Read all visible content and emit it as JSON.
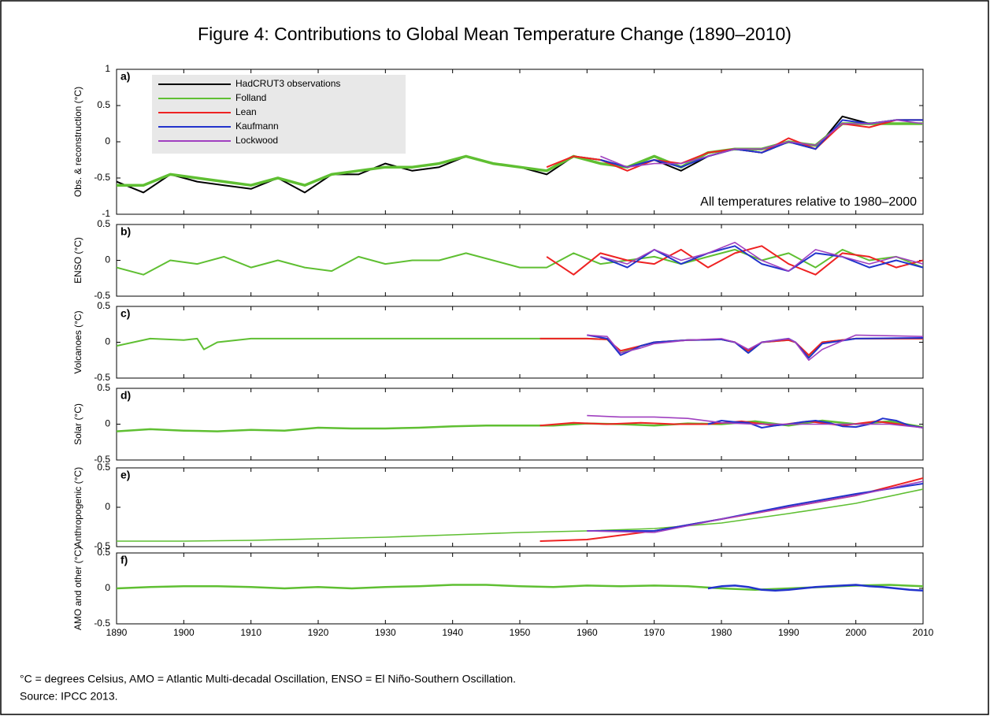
{
  "title": "Figure 4: Contributions to Global Mean Temperature Change (1890–2010)",
  "footnotes": [
    "°C = degrees Celsius, AMO = Atlantic Multi-decadal Oscillation, ENSO = El Niño-Southern Oscillation.",
    "Source: IPCC 2013."
  ],
  "chart_data": [
    {
      "type": "line",
      "label": "a)",
      "ylabel": "Obs. & reconstruction (°C)",
      "annotation": "All temperatures relative to 1980–2000",
      "legend": "upper left",
      "xlim": [
        1890,
        2010
      ],
      "ylim": [
        -1,
        1
      ],
      "yticks": [
        -1,
        -0.5,
        0,
        0.5,
        1
      ],
      "series": [
        {
          "name": "HadCRUT3 observations",
          "color": "#000000",
          "x": [
            1890,
            1894,
            1898,
            1902,
            1906,
            1910,
            1914,
            1918,
            1922,
            1926,
            1930,
            1934,
            1938,
            1942,
            1946,
            1950,
            1954,
            1958,
            1962,
            1966,
            1970,
            1974,
            1978,
            1982,
            1986,
            1990,
            1994,
            1998,
            2002,
            2006,
            2010
          ],
          "values": [
            -0.55,
            -0.7,
            -0.45,
            -0.55,
            -0.6,
            -0.65,
            -0.5,
            -0.7,
            -0.45,
            -0.45,
            -0.3,
            -0.4,
            -0.35,
            -0.2,
            -0.3,
            -0.35,
            -0.45,
            -0.2,
            -0.25,
            -0.35,
            -0.25,
            -0.4,
            -0.2,
            -0.1,
            -0.15,
            0.0,
            -0.1,
            0.35,
            0.25,
            0.3,
            0.3
          ]
        },
        {
          "name": "Folland",
          "color": "#5fbf32",
          "x": [
            1890,
            1894,
            1898,
            1902,
            1906,
            1910,
            1914,
            1918,
            1922,
            1926,
            1930,
            1934,
            1938,
            1942,
            1946,
            1950,
            1954,
            1958,
            1962,
            1966,
            1970,
            1974,
            1978,
            1982,
            1986,
            1990,
            1994,
            1998,
            2002,
            2006,
            2010
          ],
          "values": [
            -0.6,
            -0.6,
            -0.45,
            -0.5,
            -0.55,
            -0.6,
            -0.5,
            -0.6,
            -0.45,
            -0.4,
            -0.35,
            -0.35,
            -0.3,
            -0.2,
            -0.3,
            -0.35,
            -0.4,
            -0.2,
            -0.3,
            -0.35,
            -0.2,
            -0.35,
            -0.15,
            -0.1,
            -0.1,
            0.0,
            -0.05,
            0.25,
            0.25,
            0.25,
            0.25
          ]
        },
        {
          "name": "Lean",
          "color": "#ee2222",
          "x": [
            1954,
            1958,
            1962,
            1966,
            1970,
            1974,
            1978,
            1982,
            1986,
            1990,
            1994,
            1998,
            2002,
            2006,
            2010
          ],
          "values": [
            -0.35,
            -0.2,
            -0.25,
            -0.4,
            -0.25,
            -0.3,
            -0.15,
            -0.1,
            -0.15,
            0.05,
            -0.1,
            0.25,
            0.2,
            0.3,
            0.3
          ]
        },
        {
          "name": "Kaufmann",
          "color": "#2233cc",
          "x": [
            1962,
            1966,
            1970,
            1974,
            1978,
            1982,
            1986,
            1990,
            1994,
            1998,
            2002,
            2006,
            2010
          ],
          "values": [
            -0.25,
            -0.35,
            -0.25,
            -0.35,
            -0.2,
            -0.1,
            -0.15,
            0.0,
            -0.1,
            0.3,
            0.25,
            0.3,
            0.3
          ]
        },
        {
          "name": "Lockwood",
          "color": "#a040c0",
          "x": [
            1962,
            1966,
            1970,
            1974,
            1978,
            1982,
            1986,
            1990,
            1994,
            1998,
            2002,
            2006,
            2010
          ],
          "values": [
            -0.2,
            -0.35,
            -0.3,
            -0.3,
            -0.2,
            -0.1,
            -0.1,
            0.0,
            -0.05,
            0.25,
            0.25,
            0.3,
            0.25
          ]
        }
      ]
    },
    {
      "type": "line",
      "label": "b)",
      "ylabel": "ENSO (°C)",
      "xlim": [
        1890,
        2010
      ],
      "ylim": [
        -0.5,
        0.5
      ],
      "yticks": [
        -0.5,
        0,
        0.5
      ],
      "series": [
        {
          "color": "#5fbf32",
          "x": [
            1890,
            1894,
            1898,
            1902,
            1906,
            1910,
            1914,
            1918,
            1922,
            1926,
            1930,
            1934,
            1938,
            1942,
            1946,
            1950,
            1954,
            1958,
            1962,
            1966,
            1970,
            1974,
            1978,
            1982,
            1986,
            1990,
            1994,
            1998,
            2002,
            2006,
            2010
          ],
          "values": [
            -0.1,
            -0.2,
            0.0,
            -0.05,
            0.05,
            -0.1,
            0.0,
            -0.1,
            -0.15,
            0.05,
            -0.05,
            0.0,
            0.0,
            0.1,
            0.0,
            -0.1,
            -0.1,
            0.1,
            -0.05,
            0.0,
            0.05,
            -0.05,
            0.05,
            0.15,
            0.0,
            0.1,
            -0.1,
            0.15,
            0.0,
            0.05,
            -0.1
          ]
        },
        {
          "color": "#ee2222",
          "x": [
            1954,
            1958,
            1962,
            1966,
            1970,
            1974,
            1978,
            1982,
            1986,
            1990,
            1994,
            1998,
            2002,
            2006,
            2010
          ],
          "values": [
            0.05,
            -0.2,
            0.1,
            0.0,
            -0.05,
            0.15,
            -0.1,
            0.1,
            0.2,
            -0.05,
            -0.2,
            0.1,
            0.05,
            -0.1,
            0.0
          ]
        },
        {
          "color": "#2233cc",
          "x": [
            1962,
            1966,
            1970,
            1974,
            1978,
            1982,
            1986,
            1990,
            1994,
            1998,
            2002,
            2006,
            2010
          ],
          "values": [
            0.05,
            -0.1,
            0.15,
            -0.05,
            0.1,
            0.2,
            -0.05,
            -0.15,
            0.1,
            0.05,
            -0.1,
            0.0,
            -0.1
          ]
        },
        {
          "color": "#a040c0",
          "x": [
            1962,
            1966,
            1970,
            1974,
            1978,
            1982,
            1986,
            1990,
            1994,
            1998,
            2002,
            2006,
            2010
          ],
          "values": [
            0.05,
            -0.05,
            0.15,
            0.0,
            0.1,
            0.25,
            0.0,
            -0.15,
            0.15,
            0.05,
            -0.05,
            0.05,
            -0.05
          ]
        }
      ]
    },
    {
      "type": "line",
      "label": "c)",
      "ylabel": "Volcanoes (°C)",
      "xlim": [
        1890,
        2010
      ],
      "ylim": [
        -0.5,
        0.5
      ],
      "yticks": [
        -0.5,
        0,
        0.5
      ],
      "series": [
        {
          "color": "#5fbf32",
          "x": [
            1890,
            1895,
            1900,
            1902,
            1903,
            1905,
            1910,
            1920,
            1930,
            1940,
            1950,
            1960,
            1963,
            1965,
            1968,
            1970,
            1975,
            1980,
            1982,
            1984,
            1986,
            1990,
            1991,
            1993,
            1995,
            2000,
            2010
          ],
          "values": [
            -0.05,
            0.05,
            0.03,
            0.05,
            -0.1,
            0.0,
            0.05,
            0.05,
            0.05,
            0.05,
            0.05,
            0.05,
            0.04,
            -0.15,
            -0.05,
            0.0,
            0.03,
            0.04,
            0.0,
            -0.15,
            0.0,
            0.03,
            0.0,
            -0.2,
            0.0,
            0.05,
            0.05
          ]
        },
        {
          "color": "#ee2222",
          "x": [
            1953,
            1960,
            1963,
            1965,
            1968,
            1970,
            1975,
            1980,
            1982,
            1984,
            1986,
            1990,
            1991,
            1993,
            1995,
            2000,
            2010
          ],
          "values": [
            0.05,
            0.05,
            0.04,
            -0.12,
            -0.05,
            0.0,
            0.03,
            0.04,
            0.0,
            -0.12,
            0.0,
            0.03,
            0.0,
            -0.18,
            0.0,
            0.05,
            0.05
          ]
        },
        {
          "color": "#2233cc",
          "x": [
            1960,
            1963,
            1965,
            1968,
            1970,
            1975,
            1980,
            1982,
            1984,
            1986,
            1990,
            1991,
            1993,
            1995,
            2000,
            2010
          ],
          "values": [
            0.1,
            0.05,
            -0.18,
            -0.05,
            0.0,
            0.03,
            0.04,
            0.0,
            -0.15,
            0.0,
            0.05,
            0.0,
            -0.22,
            -0.02,
            0.05,
            0.06
          ]
        },
        {
          "color": "#a040c0",
          "x": [
            1960,
            1963,
            1965,
            1968,
            1970,
            1975,
            1980,
            1982,
            1984,
            1986,
            1990,
            1991,
            1993,
            1995,
            2000,
            2010
          ],
          "values": [
            0.1,
            0.08,
            -0.15,
            -0.08,
            -0.02,
            0.03,
            0.05,
            0.0,
            -0.1,
            0.0,
            0.05,
            0.0,
            -0.25,
            -0.1,
            0.1,
            0.08
          ]
        }
      ]
    },
    {
      "type": "line",
      "label": "d)",
      "ylabel": "Solar (°C)",
      "xlim": [
        1890,
        2010
      ],
      "ylim": [
        -0.5,
        0.5
      ],
      "yticks": [
        -0.5,
        0,
        0.5
      ],
      "series": [
        {
          "color": "#5fbf32",
          "x": [
            1890,
            1895,
            1900,
            1905,
            1910,
            1915,
            1920,
            1925,
            1930,
            1935,
            1940,
            1945,
            1950,
            1955,
            1960,
            1965,
            1970,
            1975,
            1980,
            1985,
            1990,
            1995,
            2000,
            2005,
            2010
          ],
          "values": [
            -0.1,
            -0.07,
            -0.09,
            -0.1,
            -0.08,
            -0.09,
            -0.05,
            -0.06,
            -0.06,
            -0.05,
            -0.03,
            -0.02,
            -0.02,
            -0.02,
            0.01,
            0.0,
            -0.02,
            0.01,
            0.0,
            0.04,
            -0.02,
            0.05,
            0.0,
            0.04,
            -0.04
          ]
        },
        {
          "color": "#ee2222",
          "x": [
            1953,
            1958,
            1963,
            1968,
            1973,
            1978,
            1983,
            1988,
            1993,
            1998,
            2003,
            2008,
            2010
          ],
          "values": [
            -0.02,
            0.02,
            0.0,
            0.02,
            0.0,
            0.0,
            0.04,
            -0.02,
            0.04,
            -0.02,
            0.04,
            -0.02,
            -0.05
          ]
        },
        {
          "color": "#2233cc",
          "x": [
            1978,
            1980,
            1982,
            1984,
            1986,
            1988,
            1990,
            1992,
            1994,
            1996,
            1998,
            2000,
            2002,
            2004,
            2006,
            2008,
            2010
          ],
          "values": [
            0.0,
            0.05,
            0.03,
            0.02,
            -0.05,
            -0.02,
            0.0,
            0.03,
            0.05,
            0.02,
            -0.03,
            -0.04,
            0.0,
            0.08,
            0.05,
            -0.02,
            -0.05
          ]
        },
        {
          "color": "#a040c0",
          "x": [
            1960,
            1965,
            1970,
            1975,
            1980,
            1985,
            1990,
            1995,
            2000,
            2005,
            2010
          ],
          "values": [
            0.12,
            0.1,
            0.1,
            0.08,
            0.02,
            0.0,
            0.0,
            0.0,
            0.0,
            0.0,
            -0.05
          ]
        }
      ]
    },
    {
      "type": "line",
      "label": "e)",
      "ylabel": "Anthropogenic (°C)",
      "xlim": [
        1890,
        2010
      ],
      "ylim": [
        -0.5,
        0.5
      ],
      "yticks": [
        -0.5,
        0,
        0.5
      ],
      "series": [
        {
          "color": "#5fbf32",
          "x": [
            1890,
            1900,
            1910,
            1920,
            1930,
            1940,
            1950,
            1960,
            1970,
            1980,
            1990,
            2000,
            2010
          ],
          "values": [
            -0.43,
            -0.43,
            -0.42,
            -0.4,
            -0.38,
            -0.35,
            -0.32,
            -0.3,
            -0.27,
            -0.2,
            -0.08,
            0.05,
            0.23
          ]
        },
        {
          "color": "#ee2222",
          "x": [
            1953,
            1960,
            1970,
            1980,
            1990,
            2000,
            2010
          ],
          "values": [
            -0.43,
            -0.41,
            -0.3,
            -0.15,
            0.0,
            0.15,
            0.37
          ]
        },
        {
          "color": "#2233cc",
          "x": [
            1960,
            1970,
            1980,
            1990,
            2000,
            2010
          ],
          "values": [
            -0.3,
            -0.3,
            -0.15,
            0.02,
            0.17,
            0.3
          ]
        },
        {
          "color": "#a040c0",
          "x": [
            1960,
            1970,
            1980,
            1990,
            2000,
            2010
          ],
          "values": [
            -0.3,
            -0.32,
            -0.15,
            0.0,
            0.15,
            0.33
          ]
        }
      ]
    },
    {
      "type": "line",
      "label": "f)",
      "ylabel": "AMO and other (°C)",
      "xlim": [
        1890,
        2010
      ],
      "ylim": [
        -0.5,
        0.5
      ],
      "yticks": [
        -0.5,
        0,
        0.5
      ],
      "xticks": [
        1890,
        1900,
        1910,
        1920,
        1930,
        1940,
        1950,
        1960,
        1970,
        1980,
        1990,
        2000,
        2010
      ],
      "series": [
        {
          "color": "#5fbf32",
          "x": [
            1890,
            1895,
            1900,
            1905,
            1910,
            1915,
            1920,
            1925,
            1930,
            1935,
            1940,
            1945,
            1950,
            1955,
            1960,
            1965,
            1970,
            1975,
            1980,
            1985,
            1990,
            1995,
            2000,
            2005,
            2010
          ],
          "values": [
            0.0,
            0.02,
            0.03,
            0.03,
            0.02,
            0.0,
            0.02,
            0.0,
            0.02,
            0.03,
            0.05,
            0.05,
            0.03,
            0.02,
            0.04,
            0.03,
            0.04,
            0.03,
            0.0,
            -0.02,
            0.0,
            0.02,
            0.04,
            0.05,
            0.03
          ]
        },
        {
          "color": "#2233cc",
          "x": [
            1978,
            1980,
            1982,
            1984,
            1986,
            1988,
            1990,
            1992,
            1994,
            1996,
            1998,
            2000,
            2002,
            2004,
            2006,
            2008,
            2010
          ],
          "values": [
            0.0,
            0.03,
            0.04,
            0.02,
            -0.02,
            -0.03,
            -0.02,
            0.0,
            0.02,
            0.03,
            0.04,
            0.05,
            0.03,
            0.02,
            0.0,
            -0.02,
            -0.03
          ]
        }
      ]
    }
  ]
}
